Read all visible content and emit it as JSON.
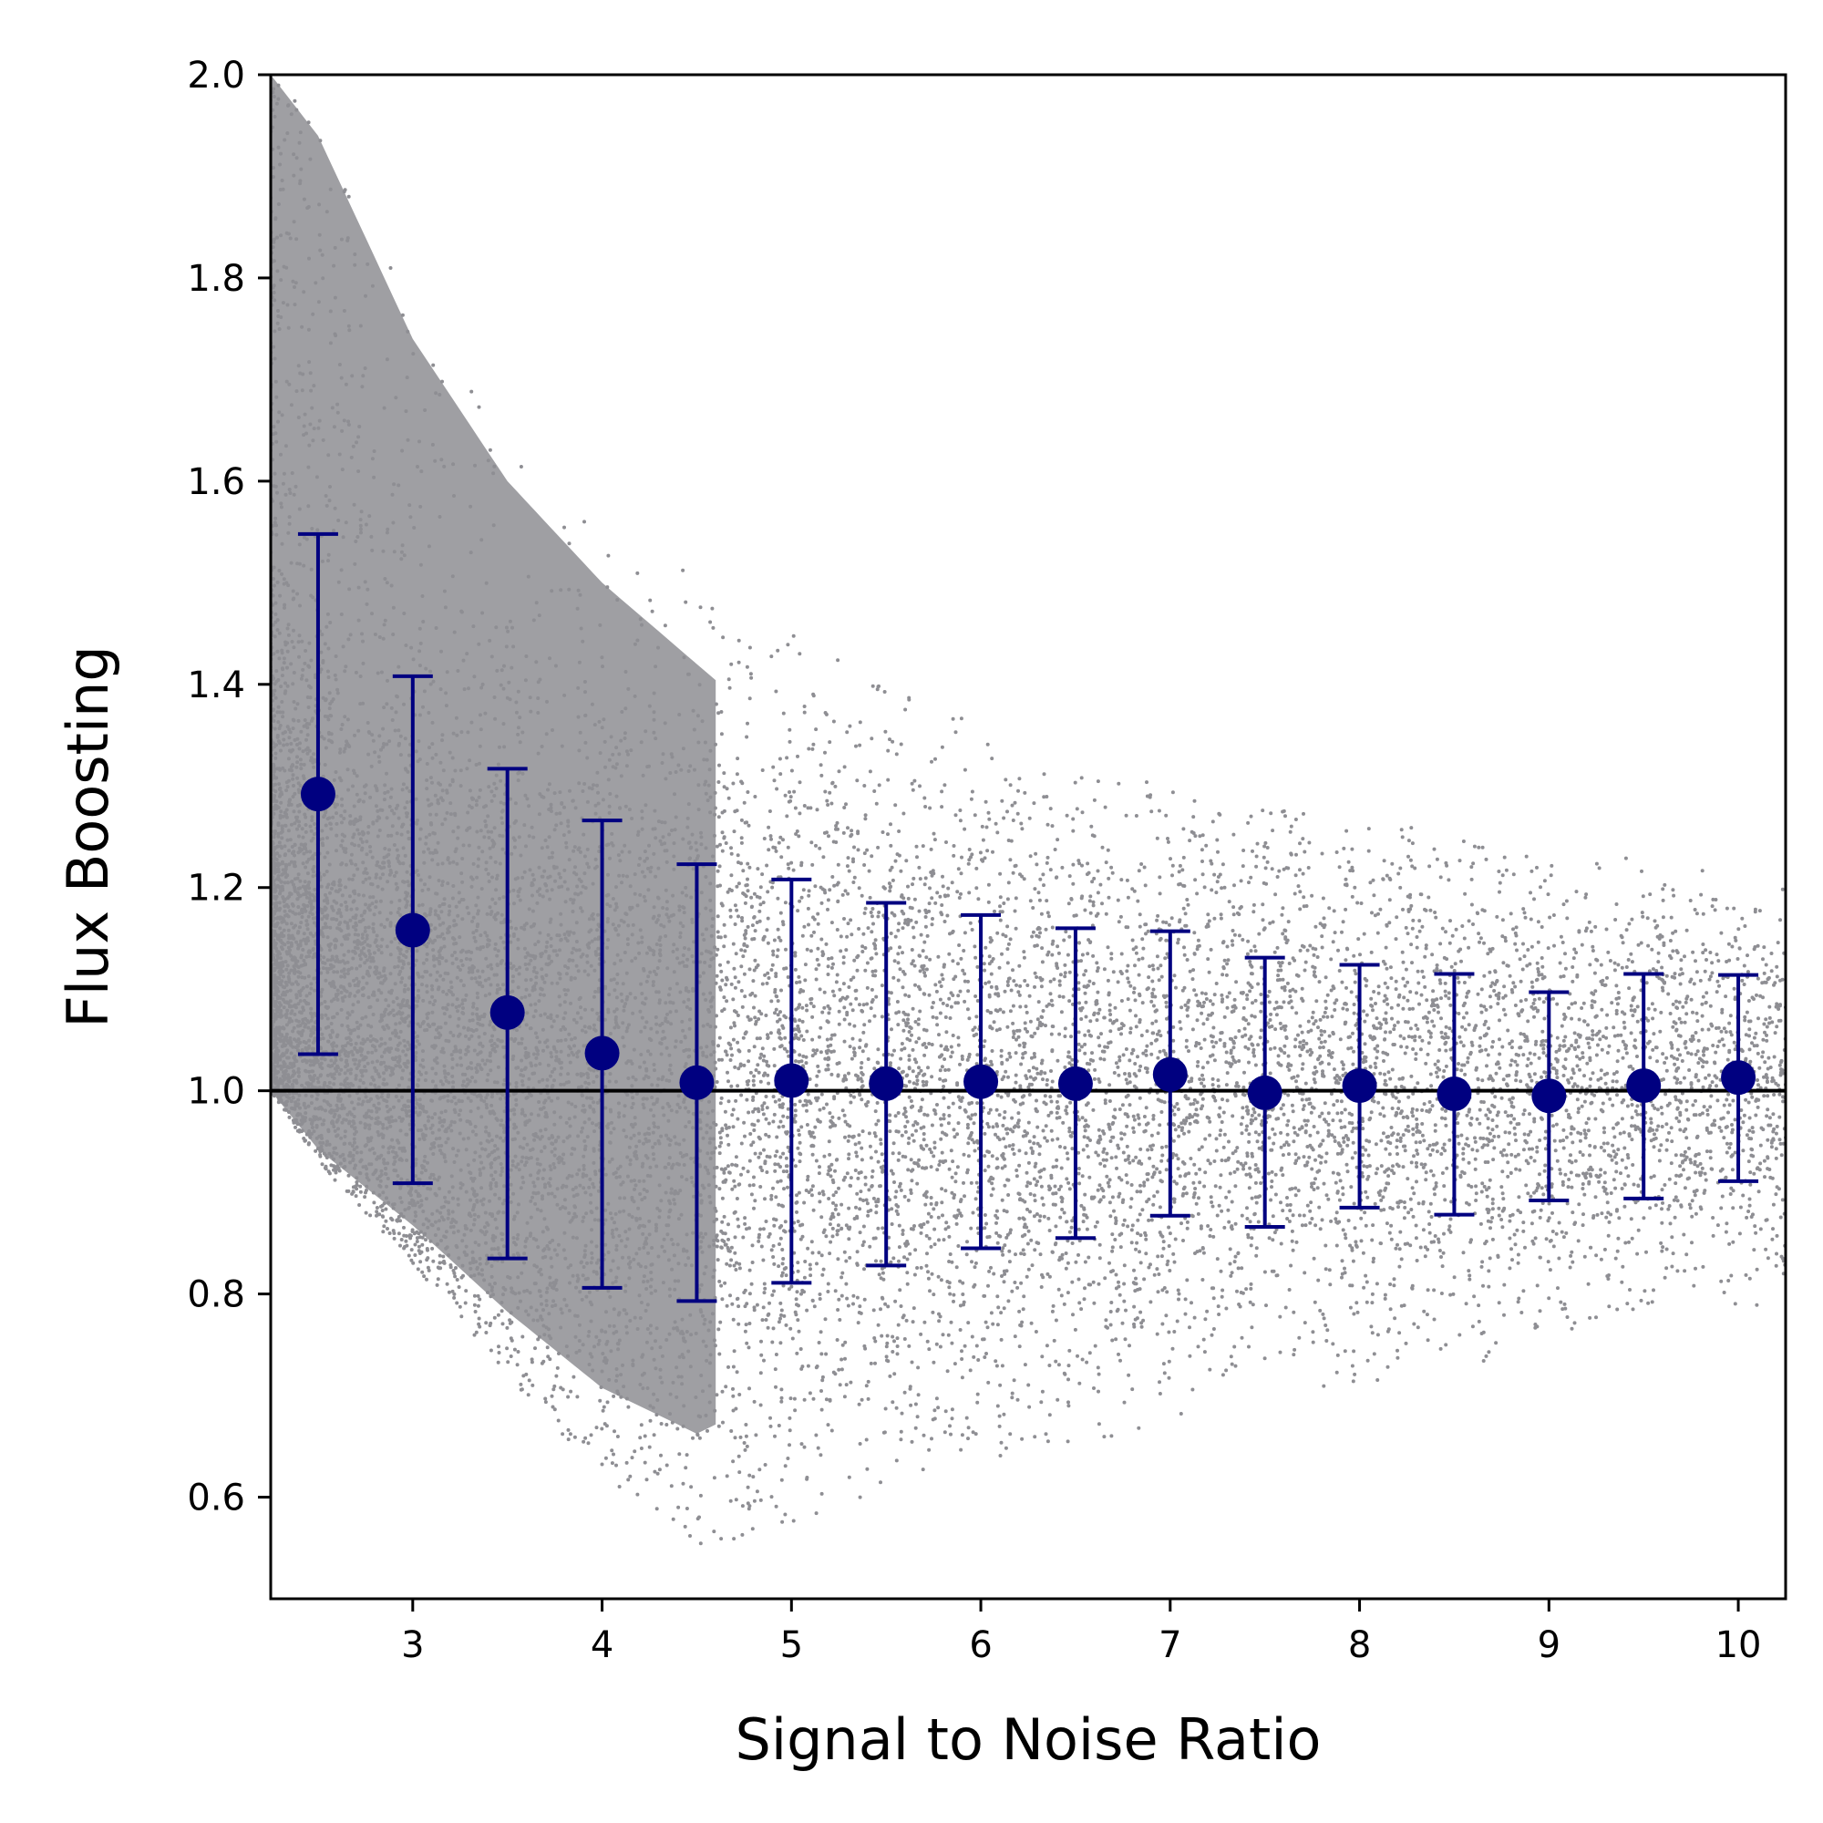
{
  "chart_data": {
    "type": "scatter",
    "title": "",
    "xlabel": "Signal to Noise Ratio",
    "ylabel": "Flux Boosting",
    "xlim": [
      2.25,
      10.25
    ],
    "ylim": [
      0.5,
      2.0
    ],
    "xticks": [
      3,
      4,
      5,
      6,
      7,
      8,
      9,
      10
    ],
    "yticks": [
      0.6,
      0.8,
      1.0,
      1.2,
      1.4,
      1.6,
      1.8,
      2.0
    ],
    "xtick_labels": [
      "3",
      "4",
      "5",
      "6",
      "7",
      "8",
      "9",
      "10"
    ],
    "ytick_labels": [
      "0.6",
      "0.8",
      "1.0",
      "1.2",
      "1.4",
      "1.6",
      "1.8",
      "2.0"
    ],
    "grid": false,
    "legend": "none",
    "reference_line": {
      "y": 1.0,
      "color": "#000000"
    },
    "series": [
      {
        "type": "scatter-cloud",
        "color": "#8e8e93",
        "description_data": {
          "upper_envelope": [
            [
              2.25,
              2.0
            ],
            [
              2.5,
              1.95
            ],
            [
              3.0,
              1.77
            ],
            [
              3.5,
              1.65
            ],
            [
              4.0,
              1.57
            ],
            [
              4.5,
              1.51
            ],
            [
              5.0,
              1.45
            ],
            [
              5.5,
              1.4
            ],
            [
              6.0,
              1.36
            ],
            [
              6.5,
              1.32
            ],
            [
              7.0,
              1.3
            ],
            [
              7.5,
              1.28
            ],
            [
              8.0,
              1.27
            ],
            [
              8.5,
              1.25
            ],
            [
              9.0,
              1.23
            ],
            [
              9.5,
              1.23
            ],
            [
              10.25,
              1.21
            ]
          ],
          "lower_envelope": [
            [
              2.25,
              1.0
            ],
            [
              2.5,
              0.93
            ],
            [
              3.0,
              0.83
            ],
            [
              3.5,
              0.72
            ],
            [
              4.0,
              0.62
            ],
            [
              4.5,
              0.55
            ],
            [
              5.0,
              0.57
            ],
            [
              5.5,
              0.61
            ],
            [
              6.0,
              0.63
            ],
            [
              6.5,
              0.64
            ],
            [
              7.0,
              0.67
            ],
            [
              7.5,
              0.69
            ],
            [
              8.0,
              0.71
            ],
            [
              8.5,
              0.73
            ],
            [
              9.0,
              0.74
            ],
            [
              9.5,
              0.77
            ],
            [
              10.25,
              0.79
            ]
          ]
        }
      },
      {
        "type": "errorbar",
        "color": "#000080",
        "x": [
          2.5,
          3.0,
          3.5,
          4.0,
          4.5,
          5.0,
          5.5,
          6.0,
          6.5,
          7.0,
          7.5,
          8.0,
          8.5,
          9.0,
          9.5,
          10.0
        ],
        "y": [
          1.292,
          1.158,
          1.077,
          1.037,
          1.008,
          1.01,
          1.007,
          1.009,
          1.007,
          1.016,
          0.998,
          1.005,
          0.997,
          0.995,
          1.005,
          1.013
        ],
        "y_upper": [
          1.548,
          1.408,
          1.317,
          1.266,
          1.223,
          1.208,
          1.185,
          1.173,
          1.16,
          1.157,
          1.131,
          1.124,
          1.115,
          1.097,
          1.115,
          1.114
        ],
        "y_lower": [
          1.036,
          0.909,
          0.835,
          0.806,
          0.793,
          0.811,
          0.828,
          0.845,
          0.855,
          0.877,
          0.866,
          0.885,
          0.878,
          0.892,
          0.894,
          0.911
        ]
      }
    ]
  }
}
